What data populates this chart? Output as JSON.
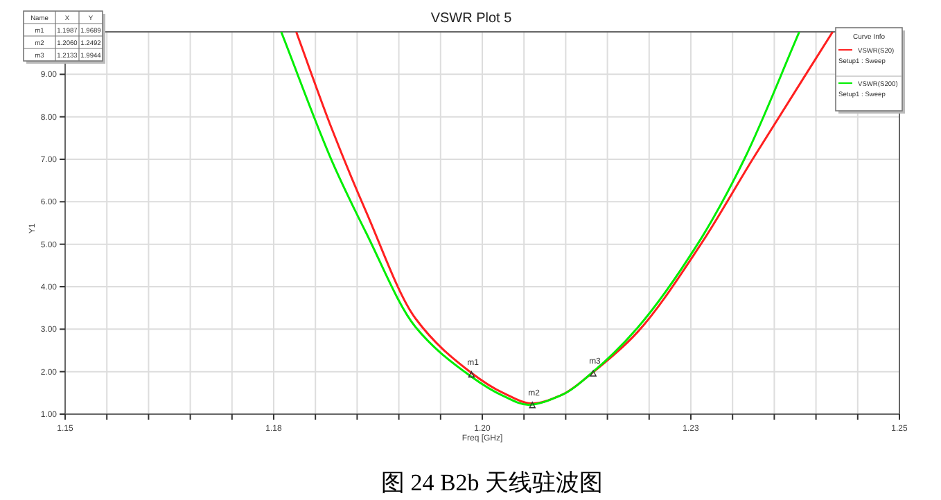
{
  "chart_data": {
    "type": "line",
    "title": "VSWR Plot 5",
    "xlabel": "Freq [GHz]",
    "ylabel": "Y1",
    "legend_title": "Curve Info",
    "legend": "top right",
    "grid": true,
    "marker": "none",
    "line_style": "solid",
    "xlim": [
      1.15,
      1.25
    ],
    "ylim": [
      1,
      10
    ],
    "xticks": [
      1.15,
      {
        "value": 1.155,
        "label": null
      },
      {
        "value": 1.16,
        "label": null
      },
      {
        "value": 1.165,
        "label": null
      },
      {
        "value": 1.17,
        "label": null
      },
      {
        "value": 1.175,
        "label": "1.18"
      },
      {
        "value": 1.18,
        "label": null
      },
      {
        "value": 1.185,
        "label": null
      },
      {
        "value": 1.19,
        "label": null
      },
      {
        "value": 1.195,
        "label": null
      },
      {
        "value": 1.2,
        "label": "1.20"
      },
      {
        "value": 1.205,
        "label": null
      },
      {
        "value": 1.21,
        "label": null
      },
      {
        "value": 1.215,
        "label": null
      },
      {
        "value": 1.22,
        "label": null
      },
      {
        "value": 1.225,
        "label": "1.23"
      },
      {
        "value": 1.23,
        "label": null
      },
      {
        "value": 1.235,
        "label": null
      },
      {
        "value": 1.24,
        "label": null
      },
      {
        "value": 1.245,
        "label": null
      },
      1.25
    ],
    "yticks": [
      {
        "value": 1,
        "label": "1.00"
      },
      {
        "value": 2,
        "label": "2.00"
      },
      {
        "value": 3,
        "label": "3.00"
      },
      {
        "value": 4,
        "label": "4.00"
      },
      {
        "value": 5,
        "label": "5.00"
      },
      {
        "value": 6,
        "label": "6.00"
      },
      {
        "value": 7,
        "label": "7.00"
      },
      {
        "value": 8,
        "label": "8.00"
      },
      {
        "value": 9,
        "label": "9.00"
      },
      {
        "value": 10,
        "label": null
      }
    ],
    "series": [
      {
        "name": "VSWR(S20)\nSetup1 : Sweep",
        "color": "#ff2020",
        "x": [
          1.1777,
          1.182,
          1.186,
          1.192,
          1.1987,
          1.2025,
          1.206,
          1.2095,
          1.2133,
          1.2186,
          1.2262,
          1.2324,
          1.242
        ],
        "values": [
          10,
          7.7,
          5.8,
          3.25,
          1.97,
          1.5,
          1.25,
          1.45,
          1.99,
          2.93,
          5.0,
          7.0,
          10
        ]
      },
      {
        "name": "VSWR(S200)\nSetup1 : Sweep",
        "color": "#00ee00",
        "x": [
          1.1759,
          1.182,
          1.186,
          1.192,
          1.1987,
          1.2025,
          1.2055,
          1.2095,
          1.2133,
          1.2186,
          1.2258,
          1.2314,
          1.238
        ],
        "values": [
          10,
          6.95,
          5.3,
          3.05,
          1.88,
          1.43,
          1.22,
          1.45,
          2.0,
          3.03,
          5.0,
          7.0,
          10
        ]
      }
    ],
    "annotations": [
      "Name",
      "X",
      "Y",
      "m1",
      "1.1987",
      "1.9689",
      "m2",
      "1.2060",
      "1.2492",
      "m3",
      "1.2133",
      "1.9944",
      {
        "text": "m1",
        "x": 1.1987,
        "y": 1.9689
      },
      {
        "text": "m2",
        "x": 1.206,
        "y": 1.2492
      },
      {
        "text": "m3",
        "x": 1.2133,
        "y": 1.9944
      },
      "图 24 B2b 天线驻波图"
    ]
  }
}
